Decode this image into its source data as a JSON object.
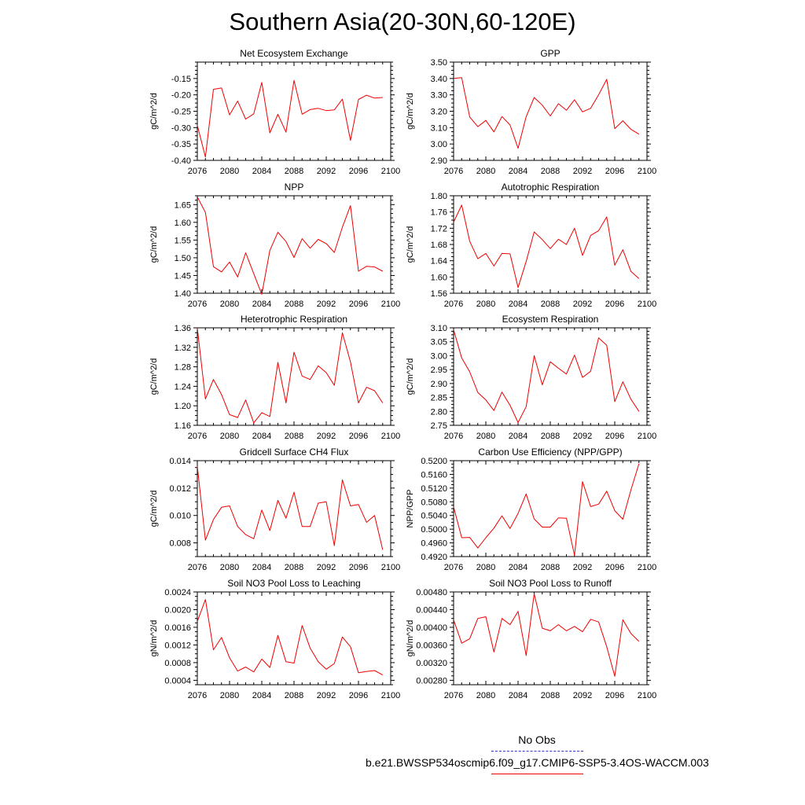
{
  "title": "Southern Asia(20-30N,60-120E)",
  "colors": {
    "series": "#ee0000",
    "obs": "#3333cc",
    "axis": "#000000"
  },
  "legend": {
    "obs_label": "No Obs",
    "model_label": "b.e21.BWSSP534oscmip6.f09_g17.CMIP6-SSP5-3.4OS-WACCM.003"
  },
  "chart_data": [
    {
      "type": "line",
      "title": "Net Ecosystem Exchange",
      "ylabel": "gC/m^2/d",
      "xlim": [
        2076,
        2100
      ],
      "ylim": [
        -0.4,
        -0.1
      ],
      "yticks": [
        -0.4,
        -0.35,
        -0.3,
        -0.25,
        -0.2,
        -0.15
      ],
      "yticklabels": [
        "-0.40",
        "-0.35",
        "-0.30",
        "-0.25",
        "-0.20",
        "-0.15"
      ],
      "xticks": [
        2076,
        2080,
        2084,
        2088,
        2092,
        2096,
        2100
      ],
      "xticklabels": [
        "2076",
        "2080",
        "2084",
        "2088",
        "2092",
        "2096",
        "2100"
      ],
      "x": [
        2076,
        2077,
        2078,
        2079,
        2080,
        2081,
        2082,
        2083,
        2084,
        2085,
        2086,
        2087,
        2088,
        2089,
        2090,
        2091,
        2092,
        2093,
        2094,
        2095,
        2096,
        2097,
        2098,
        2099
      ],
      "series": [
        {
          "values": [
            -0.293,
            -0.39,
            -0.183,
            -0.179,
            -0.261,
            -0.219,
            -0.274,
            -0.258,
            -0.162,
            -0.316,
            -0.259,
            -0.314,
            -0.156,
            -0.259,
            -0.245,
            -0.241,
            -0.248,
            -0.246,
            -0.213,
            -0.339,
            -0.214,
            -0.201,
            -0.21,
            -0.208
          ]
        }
      ]
    },
    {
      "type": "line",
      "title": "GPP",
      "ylabel": "gC/m^2/d",
      "xlim": [
        2076,
        2100
      ],
      "ylim": [
        2.9,
        3.5
      ],
      "yticks": [
        2.9,
        3.0,
        3.1,
        3.2,
        3.3,
        3.4,
        3.5
      ],
      "yticklabels": [
        "2.90",
        "3.00",
        "3.10",
        "3.20",
        "3.30",
        "3.40",
        "3.50"
      ],
      "xticks": [
        2076,
        2080,
        2084,
        2088,
        2092,
        2096,
        2100
      ],
      "xticklabels": [
        "2076",
        "2080",
        "2084",
        "2088",
        "2092",
        "2096",
        "2100"
      ],
      "x": [
        2076,
        2077,
        2078,
        2079,
        2080,
        2081,
        2082,
        2083,
        2084,
        2085,
        2086,
        2087,
        2088,
        2089,
        2090,
        2091,
        2092,
        2093,
        2094,
        2095,
        2096,
        2097,
        2098,
        2099
      ],
      "series": [
        {
          "values": [
            3.4,
            3.405,
            3.165,
            3.106,
            3.144,
            3.074,
            3.168,
            3.116,
            2.974,
            3.167,
            3.284,
            3.237,
            3.171,
            3.246,
            3.206,
            3.27,
            3.196,
            3.218,
            3.301,
            3.395,
            3.094,
            3.142,
            3.09,
            3.06
          ]
        }
      ]
    },
    {
      "type": "line",
      "title": "NPP",
      "ylabel": "gC/m^2/d",
      "xlim": [
        2076,
        2100
      ],
      "ylim": [
        1.4,
        1.675
      ],
      "yticks": [
        1.4,
        1.45,
        1.5,
        1.55,
        1.6,
        1.65
      ],
      "yticklabels": [
        "1.40",
        "1.45",
        "1.50",
        "1.55",
        "1.60",
        "1.65"
      ],
      "xticks": [
        2076,
        2080,
        2084,
        2088,
        2092,
        2096,
        2100
      ],
      "xticklabels": [
        "2076",
        "2080",
        "2084",
        "2088",
        "2092",
        "2096",
        "2100"
      ],
      "x": [
        2076,
        2077,
        2078,
        2079,
        2080,
        2081,
        2082,
        2083,
        2084,
        2085,
        2086,
        2087,
        2088,
        2089,
        2090,
        2091,
        2092,
        2093,
        2094,
        2095,
        2096,
        2097,
        2098,
        2099
      ],
      "series": [
        {
          "values": [
            1.672,
            1.628,
            1.475,
            1.46,
            1.488,
            1.446,
            1.514,
            1.455,
            1.397,
            1.521,
            1.572,
            1.546,
            1.501,
            1.554,
            1.527,
            1.552,
            1.54,
            1.515,
            1.586,
            1.647,
            1.462,
            1.476,
            1.474,
            1.462
          ]
        }
      ]
    },
    {
      "type": "line",
      "title": "Autotrophic Respiration",
      "ylabel": "gC/m^2/d",
      "xlim": [
        2076,
        2100
      ],
      "ylim": [
        1.56,
        1.8
      ],
      "yticks": [
        1.56,
        1.6,
        1.64,
        1.68,
        1.72,
        1.76,
        1.8
      ],
      "yticklabels": [
        "1.56",
        "1.60",
        "1.64",
        "1.68",
        "1.72",
        "1.76",
        "1.80"
      ],
      "xticks": [
        2076,
        2080,
        2084,
        2088,
        2092,
        2096,
        2100
      ],
      "xticklabels": [
        "2076",
        "2080",
        "2084",
        "2088",
        "2092",
        "2096",
        "2100"
      ],
      "x": [
        2076,
        2077,
        2078,
        2079,
        2080,
        2081,
        2082,
        2083,
        2084,
        2085,
        2086,
        2087,
        2088,
        2089,
        2090,
        2091,
        2092,
        2093,
        2094,
        2095,
        2096,
        2097,
        2098,
        2099
      ],
      "series": [
        {
          "values": [
            1.735,
            1.777,
            1.688,
            1.645,
            1.658,
            1.627,
            1.658,
            1.657,
            1.574,
            1.638,
            1.711,
            1.692,
            1.67,
            1.693,
            1.68,
            1.72,
            1.653,
            1.702,
            1.714,
            1.748,
            1.629,
            1.667,
            1.614,
            1.596
          ]
        }
      ]
    },
    {
      "type": "line",
      "title": "Heterotrophic Respiration",
      "ylabel": "gC/m^2/d",
      "xlim": [
        2076,
        2100
      ],
      "ylim": [
        1.16,
        1.36
      ],
      "yticks": [
        1.16,
        1.2,
        1.24,
        1.28,
        1.32,
        1.36
      ],
      "yticklabels": [
        "1.16",
        "1.20",
        "1.24",
        "1.28",
        "1.32",
        "1.36"
      ],
      "xticks": [
        2076,
        2080,
        2084,
        2088,
        2092,
        2096,
        2100
      ],
      "xticklabels": [
        "2076",
        "2080",
        "2084",
        "2088",
        "2092",
        "2096",
        "2100"
      ],
      "x": [
        2076,
        2077,
        2078,
        2079,
        2080,
        2081,
        2082,
        2083,
        2084,
        2085,
        2086,
        2087,
        2088,
        2089,
        2090,
        2091,
        2092,
        2093,
        2094,
        2095,
        2096,
        2097,
        2098,
        2099
      ],
      "series": [
        {
          "values": [
            1.36,
            1.214,
            1.254,
            1.223,
            1.182,
            1.176,
            1.212,
            1.165,
            1.186,
            1.178,
            1.289,
            1.206,
            1.31,
            1.261,
            1.254,
            1.282,
            1.268,
            1.242,
            1.35,
            1.29,
            1.206,
            1.238,
            1.231,
            1.206
          ]
        }
      ]
    },
    {
      "type": "line",
      "title": "Ecosystem Respiration",
      "ylabel": "gC/m^2/d",
      "xlim": [
        2076,
        2100
      ],
      "ylim": [
        2.75,
        3.1
      ],
      "yticks": [
        2.75,
        2.8,
        2.85,
        2.9,
        2.95,
        3.0,
        3.05,
        3.1
      ],
      "yticklabels": [
        "2.75",
        "2.80",
        "2.85",
        "2.90",
        "2.95",
        "3.00",
        "3.05",
        "3.10"
      ],
      "xticks": [
        2076,
        2080,
        2084,
        2088,
        2092,
        2096,
        2100
      ],
      "xticklabels": [
        "2076",
        "2080",
        "2084",
        "2088",
        "2092",
        "2096",
        "2100"
      ],
      "x": [
        2076,
        2077,
        2078,
        2079,
        2080,
        2081,
        2082,
        2083,
        2084,
        2085,
        2086,
        2087,
        2088,
        2089,
        2090,
        2091,
        2092,
        2093,
        2094,
        2095,
        2096,
        2097,
        2098,
        2099
      ],
      "series": [
        {
          "values": [
            3.093,
            2.992,
            2.942,
            2.868,
            2.841,
            2.803,
            2.869,
            2.822,
            2.76,
            2.817,
            3.0,
            2.895,
            2.978,
            2.955,
            2.934,
            3.002,
            2.922,
            2.944,
            3.064,
            3.037,
            2.835,
            2.906,
            2.844,
            2.8
          ]
        }
      ]
    },
    {
      "type": "line",
      "title": "Gridcell Surface CH4 Flux",
      "ylabel": "gC/m^2/d",
      "xlim": [
        2076,
        2100
      ],
      "ylim": [
        0.007,
        0.014
      ],
      "yticks": [
        0.008,
        0.01,
        0.012,
        0.014
      ],
      "yticklabels": [
        "0.008",
        "0.010",
        "0.012",
        "0.014"
      ],
      "xticks": [
        2076,
        2080,
        2084,
        2088,
        2092,
        2096,
        2100
      ],
      "xticklabels": [
        "2076",
        "2080",
        "2084",
        "2088",
        "2092",
        "2096",
        "2100"
      ],
      "x": [
        2076,
        2077,
        2078,
        2079,
        2080,
        2081,
        2082,
        2083,
        2084,
        2085,
        2086,
        2087,
        2088,
        2089,
        2090,
        2091,
        2092,
        2093,
        2094,
        2095,
        2096,
        2097,
        2098,
        2099
      ],
      "series": [
        {
          "values": [
            0.0136,
            0.0082,
            0.0097,
            0.0106,
            0.0107,
            0.0092,
            0.0086,
            0.0083,
            0.0104,
            0.0089,
            0.0111,
            0.0098,
            0.0117,
            0.0092,
            0.0092,
            0.0109,
            0.011,
            0.0078,
            0.0126,
            0.0107,
            0.0108,
            0.0095,
            0.01,
            0.0075
          ]
        }
      ]
    },
    {
      "type": "line",
      "title": "Carbon Use Efficiency (NPP/GPP)",
      "ylabel": "NPP/GPP",
      "xlim": [
        2076,
        2100
      ],
      "ylim": [
        0.492,
        0.52
      ],
      "yticks": [
        0.492,
        0.496,
        0.5,
        0.504,
        0.508,
        0.512,
        0.516,
        0.52
      ],
      "yticklabels": [
        "0.4920",
        "0.4960",
        "0.5000",
        "0.5040",
        "0.5080",
        "0.5120",
        "0.5160",
        "0.5200"
      ],
      "xticks": [
        2076,
        2080,
        2084,
        2088,
        2092,
        2096,
        2100
      ],
      "xticklabels": [
        "2076",
        "2080",
        "2084",
        "2088",
        "2092",
        "2096",
        "2100"
      ],
      "x": [
        2076,
        2077,
        2078,
        2079,
        2080,
        2081,
        2082,
        2083,
        2084,
        2085,
        2086,
        2087,
        2088,
        2089,
        2090,
        2091,
        2092,
        2093,
        2094,
        2095,
        2096,
        2097,
        2098,
        2099
      ],
      "series": [
        {
          "values": [
            0.5065,
            0.4975,
            0.4976,
            0.4945,
            0.4975,
            0.5003,
            0.5039,
            0.5002,
            0.5046,
            0.5103,
            0.503,
            0.5006,
            0.5006,
            0.5033,
            0.5032,
            0.4924,
            0.5139,
            0.5066,
            0.5073,
            0.5111,
            0.5054,
            0.5029,
            0.5114,
            0.5191
          ]
        }
      ]
    },
    {
      "type": "line",
      "title": "Soil NO3 Pool Loss to Leaching",
      "ylabel": "gN/m^2/d",
      "xlim": [
        2076,
        2100
      ],
      "ylim": [
        0.0003,
        0.0024
      ],
      "yticks": [
        0.0004,
        0.0008,
        0.0012,
        0.0016,
        0.002,
        0.0024
      ],
      "yticklabels": [
        "0.0004",
        "0.0008",
        "0.0012",
        "0.0016",
        "0.0020",
        "0.0024"
      ],
      "xticks": [
        2076,
        2080,
        2084,
        2088,
        2092,
        2096,
        2100
      ],
      "xticklabels": [
        "2076",
        "2080",
        "2084",
        "2088",
        "2092",
        "2096",
        "2100"
      ],
      "x": [
        2076,
        2077,
        2078,
        2079,
        2080,
        2081,
        2082,
        2083,
        2084,
        2085,
        2086,
        2087,
        2088,
        2089,
        2090,
        2091,
        2092,
        2093,
        2094,
        2095,
        2096,
        2097,
        2098,
        2099
      ],
      "series": [
        {
          "values": [
            0.00173,
            0.00223,
            0.00109,
            0.00137,
            0.00091,
            0.00061,
            0.0007,
            0.00059,
            0.00088,
            0.00069,
            0.00142,
            0.00082,
            0.00079,
            0.00164,
            0.00113,
            0.00082,
            0.00065,
            0.00078,
            0.00138,
            0.00116,
            0.00057,
            0.0006,
            0.00062,
            0.00052
          ]
        }
      ]
    },
    {
      "type": "line",
      "title": "Soil NO3 Pool Loss to Runoff",
      "ylabel": "gN/m^2/d",
      "xlim": [
        2076,
        2100
      ],
      "ylim": [
        0.0027,
        0.0048
      ],
      "yticks": [
        0.0028,
        0.0032,
        0.0036,
        0.004,
        0.0044,
        0.0048
      ],
      "yticklabels": [
        "0.00280",
        "0.00320",
        "0.00360",
        "0.00400",
        "0.00440",
        "0.00480"
      ],
      "xticks": [
        2076,
        2080,
        2084,
        2088,
        2092,
        2096,
        2100
      ],
      "xticklabels": [
        "2076",
        "2080",
        "2084",
        "2088",
        "2092",
        "2096",
        "2100"
      ],
      "x": [
        2076,
        2077,
        2078,
        2079,
        2080,
        2081,
        2082,
        2083,
        2084,
        2085,
        2086,
        2087,
        2088,
        2089,
        2090,
        2091,
        2092,
        2093,
        2094,
        2095,
        2096,
        2097,
        2098,
        2099
      ],
      "series": [
        {
          "values": [
            0.00417,
            0.00364,
            0.00374,
            0.0042,
            0.00424,
            0.00344,
            0.0042,
            0.00406,
            0.00436,
            0.00336,
            0.00476,
            0.00398,
            0.00392,
            0.00406,
            0.00392,
            0.00402,
            0.0039,
            0.00418,
            0.00412,
            0.00356,
            0.00289,
            0.00417,
            0.00386,
            0.00368
          ]
        }
      ]
    }
  ]
}
